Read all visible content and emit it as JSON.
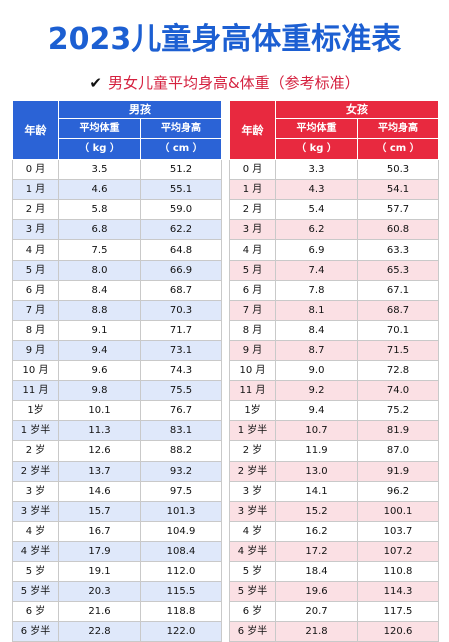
{
  "title": "2023儿童身高体重标准表",
  "subtitle": {
    "check": "✔",
    "text": "男女儿童平均身高&体重（参考标准）"
  },
  "headers": {
    "age": "年龄",
    "weight": "平均体重",
    "height": "平均身高",
    "weight_unit": "（ kg ）",
    "height_unit": "（ cm ）"
  },
  "boys": {
    "label": "男孩",
    "rows": [
      {
        "age": "0 月",
        "weight": "3.5",
        "height": "51.2"
      },
      {
        "age": "1 月",
        "weight": "4.6",
        "height": "55.1"
      },
      {
        "age": "2 月",
        "weight": "5.8",
        "height": "59.0"
      },
      {
        "age": "3 月",
        "weight": "6.8",
        "height": "62.2"
      },
      {
        "age": "4 月",
        "weight": "7.5",
        "height": "64.8"
      },
      {
        "age": "5 月",
        "weight": "8.0",
        "height": "66.9"
      },
      {
        "age": "6 月",
        "weight": "8.4",
        "height": "68.7"
      },
      {
        "age": "7 月",
        "weight": "8.8",
        "height": "70.3"
      },
      {
        "age": "8 月",
        "weight": "9.1",
        "height": "71.7"
      },
      {
        "age": "9 月",
        "weight": "9.4",
        "height": "73.1"
      },
      {
        "age": "10 月",
        "weight": "9.6",
        "height": "74.3"
      },
      {
        "age": "11 月",
        "weight": "9.8",
        "height": "75.5"
      },
      {
        "age": "1岁",
        "weight": "10.1",
        "height": "76.7"
      },
      {
        "age": "1 岁半",
        "weight": "11.3",
        "height": "83.1"
      },
      {
        "age": "2 岁",
        "weight": "12.6",
        "height": "88.2"
      },
      {
        "age": "2 岁半",
        "weight": "13.7",
        "height": "93.2"
      },
      {
        "age": "3 岁",
        "weight": "14.6",
        "height": "97.5"
      },
      {
        "age": "3 岁半",
        "weight": "15.7",
        "height": "101.3"
      },
      {
        "age": "4 岁",
        "weight": "16.7",
        "height": "104.9"
      },
      {
        "age": "4 岁半",
        "weight": "17.9",
        "height": "108.4"
      },
      {
        "age": "5 岁",
        "weight": "19.1",
        "height": "112.0"
      },
      {
        "age": "5 岁半",
        "weight": "20.3",
        "height": "115.5"
      },
      {
        "age": "6 岁",
        "weight": "21.6",
        "height": "118.8"
      },
      {
        "age": "6 岁半",
        "weight": "22.8",
        "height": "122.0"
      }
    ]
  },
  "girls": {
    "label": "女孩",
    "rows": [
      {
        "age": "0 月",
        "weight": "3.3",
        "height": "50.3"
      },
      {
        "age": "1 月",
        "weight": "4.3",
        "height": "54.1"
      },
      {
        "age": "2 月",
        "weight": "5.4",
        "height": "57.7"
      },
      {
        "age": "3 月",
        "weight": "6.2",
        "height": "60.8"
      },
      {
        "age": "4 月",
        "weight": "6.9",
        "height": "63.3"
      },
      {
        "age": "5 月",
        "weight": "7.4",
        "height": "65.3"
      },
      {
        "age": "6 月",
        "weight": "7.8",
        "height": "67.1"
      },
      {
        "age": "7 月",
        "weight": "8.1",
        "height": "68.7"
      },
      {
        "age": "8 月",
        "weight": "8.4",
        "height": "70.1"
      },
      {
        "age": "9 月",
        "weight": "8.7",
        "height": "71.5"
      },
      {
        "age": "10 月",
        "weight": "9.0",
        "height": "72.8"
      },
      {
        "age": "11 月",
        "weight": "9.2",
        "height": "74.0"
      },
      {
        "age": "1岁",
        "weight": "9.4",
        "height": "75.2"
      },
      {
        "age": "1 岁半",
        "weight": "10.7",
        "height": "81.9"
      },
      {
        "age": "2 岁",
        "weight": "11.9",
        "height": "87.0"
      },
      {
        "age": "2 岁半",
        "weight": "13.0",
        "height": "91.9"
      },
      {
        "age": "3 岁",
        "weight": "14.1",
        "height": "96.2"
      },
      {
        "age": "3 岁半",
        "weight": "15.2",
        "height": "100.1"
      },
      {
        "age": "4 岁",
        "weight": "16.2",
        "height": "103.7"
      },
      {
        "age": "4 岁半",
        "weight": "17.2",
        "height": "107.2"
      },
      {
        "age": "5 岁",
        "weight": "18.4",
        "height": "110.8"
      },
      {
        "age": "5 岁半",
        "weight": "19.6",
        "height": "114.3"
      },
      {
        "age": "6 岁",
        "weight": "20.7",
        "height": "117.5"
      },
      {
        "age": "6 岁半",
        "weight": "21.8",
        "height": "120.6"
      }
    ]
  },
  "colors": {
    "title": "#1c5fd2",
    "boys_header": "#2b63d6",
    "boys_stripe": "#dfe8fa",
    "girls_header": "#e8293f",
    "girls_stripe": "#fbe0e4",
    "subtitle": "#d5213f"
  }
}
